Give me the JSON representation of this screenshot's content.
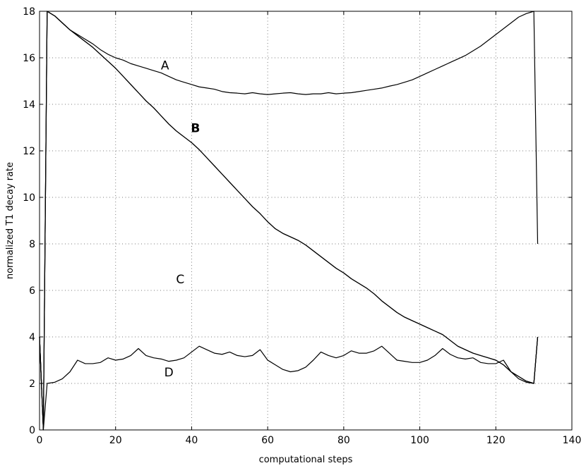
{
  "chart_data": {
    "type": "line",
    "title": "",
    "xlabel": "computational steps",
    "ylabel": "normalized T1 decay rate",
    "xlim": [
      0,
      140
    ],
    "ylim": [
      0,
      18
    ],
    "xticks": [
      0,
      20,
      40,
      60,
      80,
      100,
      120,
      140
    ],
    "yticks": [
      0,
      2,
      4,
      6,
      8,
      10,
      12,
      14,
      16,
      18
    ],
    "grid": true,
    "series": [
      {
        "name": "A",
        "bold": false,
        "label_at": [
          33,
          15.5
        ],
        "x": [
          0,
          1,
          2,
          4,
          6,
          8,
          10,
          12,
          14,
          16,
          18,
          20,
          22,
          24,
          26,
          28,
          30,
          32,
          34,
          36,
          38,
          40,
          42,
          44,
          46,
          48,
          50,
          52,
          54,
          56,
          58,
          60,
          62,
          64,
          66,
          68,
          70,
          72,
          74,
          76,
          78,
          80,
          82,
          84,
          86,
          88,
          90,
          92,
          94,
          96,
          98,
          100,
          102,
          104,
          106,
          108,
          110,
          112,
          114,
          116,
          118,
          120,
          122,
          124,
          126,
          128,
          130,
          131
        ],
        "y": [
          4,
          0,
          18,
          17.8,
          17.5,
          17.2,
          17.0,
          16.8,
          16.6,
          16.35,
          16.15,
          16.0,
          15.9,
          15.75,
          15.65,
          15.55,
          15.45,
          15.35,
          15.2,
          15.05,
          14.95,
          14.85,
          14.75,
          14.7,
          14.65,
          14.55,
          14.5,
          14.48,
          14.45,
          14.5,
          14.45,
          14.42,
          14.45,
          14.48,
          14.5,
          14.45,
          14.42,
          14.45,
          14.45,
          14.5,
          14.45,
          14.48,
          14.5,
          14.55,
          14.6,
          14.65,
          14.7,
          14.78,
          14.85,
          14.95,
          15.05,
          15.2,
          15.35,
          15.5,
          15.65,
          15.8,
          15.95,
          16.1,
          16.3,
          16.5,
          16.75,
          17.0,
          17.25,
          17.5,
          17.75,
          17.9,
          18.0,
          8
        ]
      },
      {
        "name": "B",
        "bold": true,
        "label_at": [
          41,
          12.8
        ],
        "x": [
          0,
          1,
          2,
          4,
          6,
          8,
          10,
          12,
          14,
          16,
          18,
          20,
          22,
          24,
          26,
          28,
          30,
          32,
          34,
          36,
          38,
          40,
          42,
          44,
          46,
          48,
          50,
          52,
          54,
          56,
          58,
          60,
          62,
          64,
          66,
          68,
          70,
          72,
          74,
          76,
          78,
          80,
          82,
          84,
          86,
          88,
          90,
          92,
          94,
          96,
          98,
          100,
          102,
          104,
          106,
          108,
          110,
          112,
          114,
          116,
          118,
          120,
          122,
          124,
          126,
          128,
          130,
          131
        ],
        "y": [
          4,
          0,
          18,
          17.8,
          17.5,
          17.2,
          16.95,
          16.7,
          16.45,
          16.15,
          15.85,
          15.55,
          15.2,
          14.85,
          14.5,
          14.15,
          13.85,
          13.5,
          13.15,
          12.85,
          12.6,
          12.35,
          12.05,
          11.7,
          11.35,
          11.0,
          10.65,
          10.3,
          9.95,
          9.6,
          9.3,
          8.95,
          8.65,
          8.45,
          8.3,
          8.15,
          7.95,
          7.7,
          7.45,
          7.2,
          6.95,
          6.75,
          6.5,
          6.3,
          6.1,
          5.85,
          5.55,
          5.3,
          5.05,
          4.85,
          4.7,
          4.55,
          4.4,
          4.25,
          4.1,
          3.85,
          3.6,
          3.45,
          3.3,
          3.2,
          3.1,
          3.0,
          2.8,
          2.5,
          2.3,
          2.1,
          2.0,
          4
        ]
      },
      {
        "name": "C",
        "bold": false,
        "label_at": [
          37,
          6.3
        ],
        "x": [
          0,
          1,
          2,
          4,
          6,
          8,
          10,
          12,
          14,
          16,
          18,
          20,
          22,
          24,
          26,
          28,
          30,
          32,
          34,
          36,
          38,
          40,
          42,
          44,
          46,
          48,
          50,
          52,
          54,
          56,
          58,
          60,
          62,
          64,
          66,
          68,
          70,
          72,
          74,
          76,
          78,
          80,
          82,
          84,
          86,
          88,
          90,
          92,
          94,
          96,
          98,
          100,
          102,
          104,
          106,
          108,
          110,
          112,
          114,
          116,
          118,
          120,
          122,
          124,
          126,
          128,
          130,
          131
        ],
        "y": [
          4,
          0,
          18,
          17.8,
          17.5,
          17.2,
          16.95,
          16.7,
          16.45,
          16.15,
          15.85,
          15.55,
          15.2,
          14.85,
          14.5,
          14.15,
          13.85,
          13.5,
          13.15,
          12.85,
          12.6,
          12.35,
          12.05,
          11.7,
          11.35,
          11.0,
          10.65,
          10.3,
          9.95,
          9.6,
          9.3,
          8.95,
          8.65,
          8.45,
          8.3,
          8.15,
          7.95,
          7.7,
          7.45,
          7.2,
          6.95,
          6.75,
          6.5,
          6.3,
          6.1,
          5.85,
          5.55,
          5.3,
          5.05,
          4.85,
          4.7,
          4.55,
          4.4,
          4.25,
          4.1,
          3.85,
          3.6,
          3.45,
          3.3,
          3.2,
          3.1,
          3.0,
          2.8,
          2.5,
          2.3,
          2.1,
          2.0,
          4
        ]
      },
      {
        "name": "D",
        "bold": false,
        "label_at": [
          34,
          2.3
        ],
        "x": [
          0,
          1,
          2,
          4,
          6,
          8,
          10,
          12,
          14,
          16,
          18,
          20,
          22,
          24,
          26,
          28,
          30,
          32,
          34,
          36,
          38,
          40,
          42,
          44,
          46,
          48,
          50,
          52,
          54,
          56,
          58,
          60,
          62,
          64,
          66,
          68,
          70,
          72,
          74,
          76,
          78,
          80,
          82,
          84,
          86,
          88,
          90,
          92,
          94,
          96,
          98,
          100,
          102,
          104,
          106,
          108,
          110,
          112,
          114,
          116,
          118,
          120,
          122,
          124,
          126,
          128,
          130,
          131
        ],
        "y": [
          4,
          0,
          2.0,
          2.05,
          2.2,
          2.5,
          3.0,
          2.85,
          2.85,
          2.9,
          3.1,
          3.0,
          3.05,
          3.2,
          3.5,
          3.2,
          3.1,
          3.05,
          2.95,
          3.0,
          3.1,
          3.35,
          3.6,
          3.45,
          3.3,
          3.25,
          3.35,
          3.2,
          3.15,
          3.2,
          3.45,
          3.0,
          2.8,
          2.6,
          2.5,
          2.55,
          2.7,
          3.0,
          3.35,
          3.2,
          3.1,
          3.2,
          3.4,
          3.3,
          3.3,
          3.4,
          3.6,
          3.3,
          3.0,
          2.95,
          2.9,
          2.9,
          3.0,
          3.2,
          3.5,
          3.25,
          3.1,
          3.05,
          3.1,
          2.9,
          2.85,
          2.85,
          3.0,
          2.5,
          2.2,
          2.05,
          2.0,
          4
        ]
      }
    ]
  }
}
